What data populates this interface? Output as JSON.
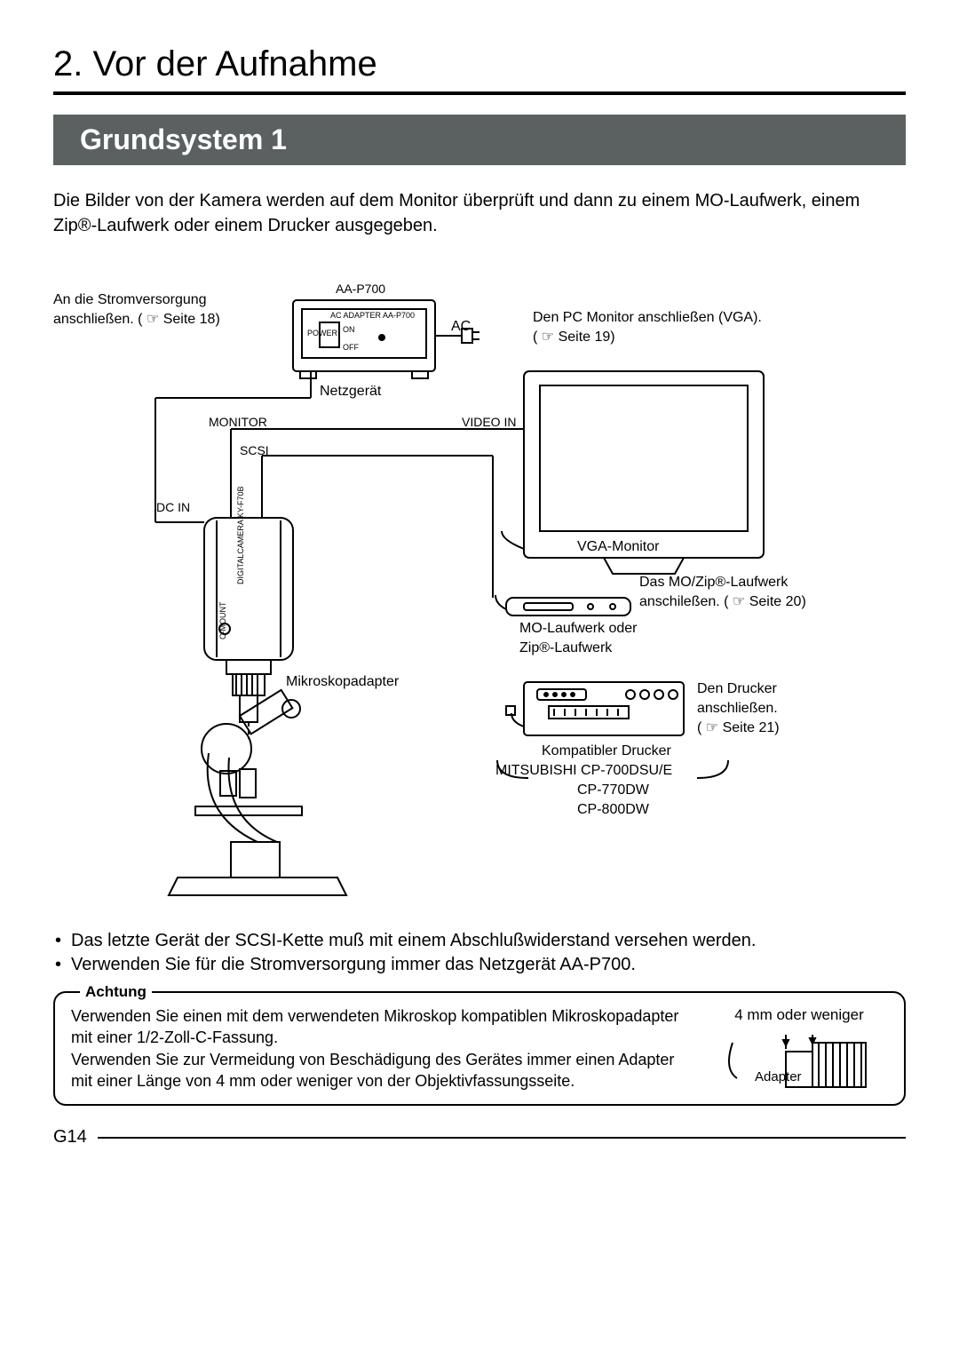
{
  "chapter_title": "2. Vor der Aufnahme",
  "section_title": "Grundsystem 1",
  "intro": "Die Bilder von der Kamera werden auf dem Monitor überprüft und dann zu einem MO-Laufwerk, einem Zip®-Laufwerk oder einem Drucker ausgegeben.",
  "diagram": {
    "power_connect": {
      "line1": "An die Stromversorgung",
      "line2": "anschließen. ( ☞ Seite 18)"
    },
    "aa_p700": "AA-P700",
    "ac_adapter_tiny": "AC ADAPTER AA-P700",
    "power_tiny": "POWER",
    "on_tiny": "ON",
    "off_tiny": "OFF",
    "ac": "AC",
    "netzgeraet": "Netzgerät",
    "monitor_port": "MONITOR",
    "video_in": "VIDEO IN",
    "scsi": "SCSI",
    "dc_in": "DC IN",
    "cam_side1": "DIGITALCAMERA KY-F70B",
    "cam_side2": "C-MOUNT",
    "mikroskop": "Mikroskopadapter",
    "pc_monitor": {
      "line1": "Den PC Monitor anschließen (VGA).",
      "line2": "( ☞ Seite 19)"
    },
    "vga_monitor": "VGA-Monitor",
    "mo_zip_connect": {
      "line1": "Das MO/Zip®-Laufwerk",
      "line2": "anschileßen. ( ☞ Seite 20)"
    },
    "mo_drive": {
      "line1": "MO-Laufwerk oder",
      "line2": "Zip®-Laufwerk"
    },
    "printer_connect": {
      "line1": "Den Drucker",
      "line2": "anschließen.",
      "line3": "( ☞ Seite 21)"
    },
    "printer_compatible": "Kompatibler Drucker",
    "printer_models": {
      "line1": "MITSUBISHI CP-700DSU/E",
      "line2": "CP-770DW",
      "line3": "CP-800DW"
    }
  },
  "bullets": [
    "Das letzte Gerät der SCSI-Kette muß mit einem Abschlußwiderstand versehen werden.",
    "Verwenden Sie für die Stromversorgung immer das Netzgerät AA-P700."
  ],
  "achtung": {
    "title": "Achtung",
    "text": "Verwenden Sie einen mit dem verwendeten Mikroskop kompatiblen Mikroskopadapter mit einer 1/2-Zoll-C-Fassung.\nVerwenden Sie zur Vermeidung von Beschädigung des Gerätes immer einen Adapter mit einer Länge von 4 mm oder weniger von der Objektivfassungsseite.",
    "fig_caption": "4 mm oder weniger",
    "fig_adapter": "Adapter"
  },
  "page_num": "G14",
  "colors": {
    "section_bg": "#5b6161",
    "line": "#000000"
  }
}
